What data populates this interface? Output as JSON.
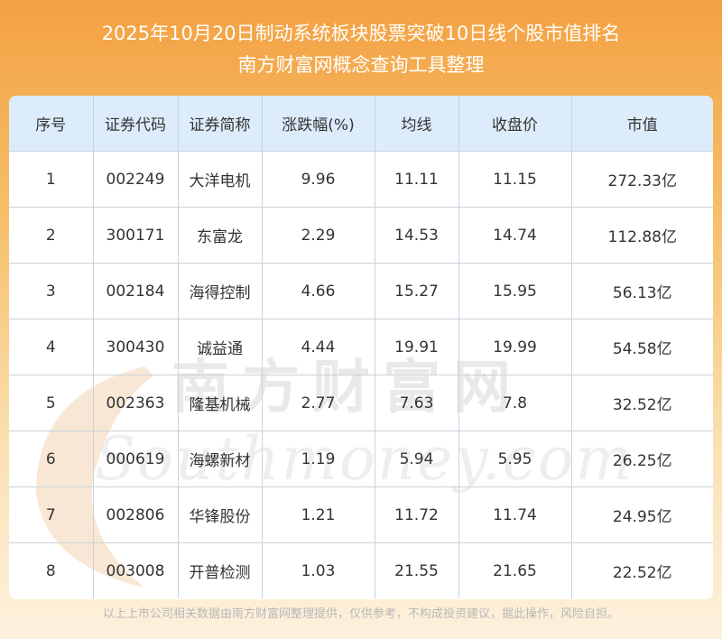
{
  "header": {
    "title": "2025年10月20日制动系统板块股票突破10日线个股市值排名",
    "subtitle": "南方财富网概念查询工具整理"
  },
  "table": {
    "columns": [
      "序号",
      "证券代码",
      "证券简称",
      "涨跌幅(%)",
      "均线",
      "收盘价",
      "市值"
    ],
    "rows": [
      [
        "1",
        "002249",
        "大洋电机",
        "9.96",
        "11.11",
        "11.15",
        "272.33亿"
      ],
      [
        "2",
        "300171",
        "东富龙",
        "2.29",
        "14.53",
        "14.74",
        "112.88亿"
      ],
      [
        "3",
        "002184",
        "海得控制",
        "4.66",
        "15.27",
        "15.95",
        "56.13亿"
      ],
      [
        "4",
        "300430",
        "诚益通",
        "4.44",
        "19.91",
        "19.99",
        "54.58亿"
      ],
      [
        "5",
        "002363",
        "隆基机械",
        "2.77",
        "7.63",
        "7.8",
        "32.52亿"
      ],
      [
        "6",
        "000619",
        "海螺新材",
        "1.19",
        "5.94",
        "5.95",
        "26.25亿"
      ],
      [
        "7",
        "002806",
        "华锋股份",
        "1.21",
        "11.72",
        "11.74",
        "24.95亿"
      ],
      [
        "8",
        "003008",
        "开普检测",
        "1.03",
        "21.55",
        "21.65",
        "22.52亿"
      ]
    ]
  },
  "watermark": {
    "cn": "南方财富网",
    "en": "Southmoney.com"
  },
  "footer": {
    "disclaimer": "以上上市公司相关数据由南方财富网整理提供，仅供参考，不构成投资建议，据此操作，风险自担。"
  },
  "colors": {
    "header_bg": "#f3a142",
    "table_header_bg": "#dcecfb",
    "grid_line": "#c9d3dd",
    "watermark": "#e6e6e6"
  }
}
